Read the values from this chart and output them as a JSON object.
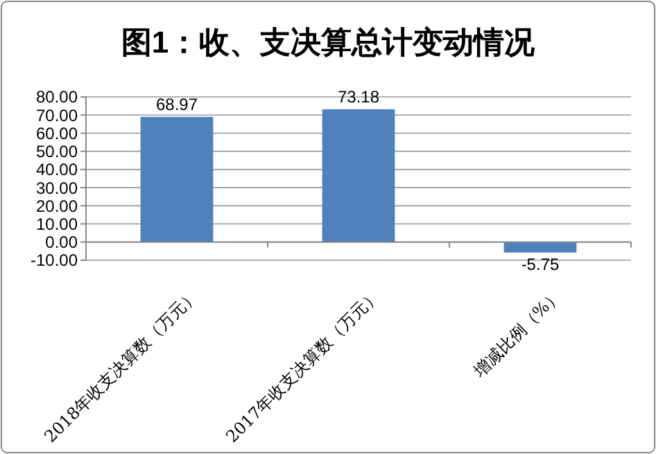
{
  "chart_data": {
    "type": "bar",
    "title": "图1：收、支决算总计变动情况",
    "categories": [
      "2018年收支决算数（万元）",
      "2017年收支决算数（万元）",
      "增减比例（%）"
    ],
    "values": [
      68.97,
      73.18,
      -5.75
    ],
    "color": "#4f81bd",
    "data_labels": true,
    "ylim": [
      -10,
      80
    ],
    "yticks": [
      {
        "value": -10,
        "label": "-10.00"
      },
      {
        "value": 0,
        "label": "0.00"
      },
      {
        "value": 10,
        "label": "10.00"
      },
      {
        "value": 20,
        "label": "20.00"
      },
      {
        "value": 30,
        "label": "30.00"
      },
      {
        "value": 40,
        "label": "40.00"
      },
      {
        "value": 50,
        "label": "50.00"
      },
      {
        "value": 60,
        "label": "60.00"
      },
      {
        "value": 70,
        "label": "70.00"
      },
      {
        "value": 80,
        "label": "80.00"
      }
    ],
    "grid": "y"
  }
}
